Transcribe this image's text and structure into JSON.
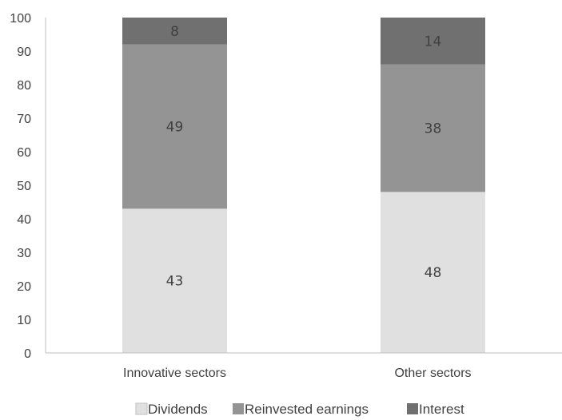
{
  "chart_data": {
    "type": "bar",
    "stacked": true,
    "categories": [
      "Innovative sectors",
      "Other sectors"
    ],
    "series": [
      {
        "name": "Dividends",
        "values": [
          43,
          48
        ],
        "color": "#e0e0e0",
        "label_color": "#404040"
      },
      {
        "name": "Reinvested earnings",
        "values": [
          49,
          38
        ],
        "color": "#949494",
        "label_color": "#404040"
      },
      {
        "name": "Interest",
        "values": [
          8,
          14
        ],
        "color": "#707070",
        "label_color": "#595959"
      }
    ],
    "ylim": [
      0,
      100
    ],
    "yticks": [
      "0",
      "10",
      "20",
      "30",
      "40",
      "50",
      "60",
      "70",
      "80",
      "90",
      "100"
    ],
    "title": "",
    "xlabel": "",
    "ylabel": "",
    "grid": false,
    "legend_position": "bottom",
    "axis_color": "#bfbfbf"
  }
}
